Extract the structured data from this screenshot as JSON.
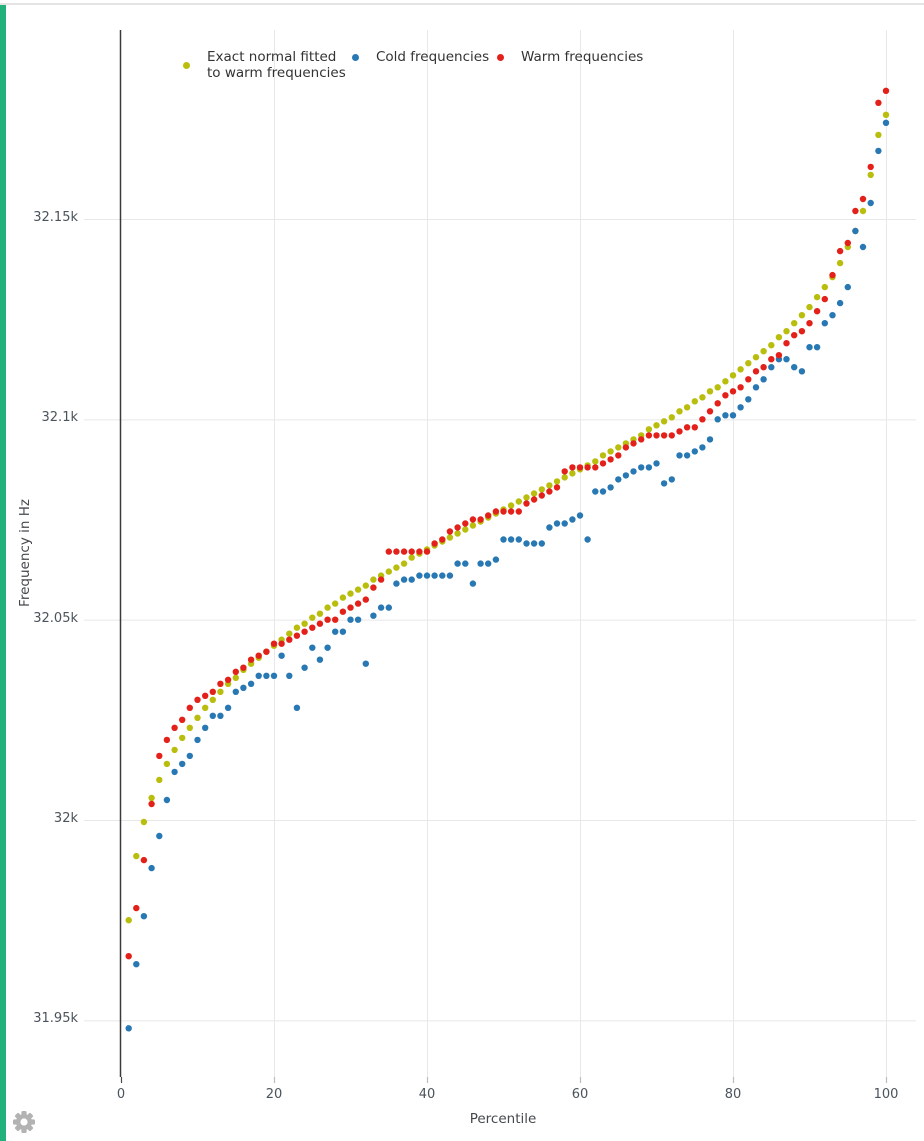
{
  "page": {
    "accent_strip_color": "#22b17c",
    "top_border_color": "#e4e4e4",
    "gear_color": "#b3b3b3",
    "background_color": "#ffffff"
  },
  "legend": {
    "items": [
      {
        "id": "fit",
        "label_lines": [
          "Exact normal fitted",
          "to warm frequencies"
        ],
        "color": "#b9bd0c"
      },
      {
        "id": "cold",
        "label_lines": [
          "Cold frequencies"
        ],
        "color": "#2878b4"
      },
      {
        "id": "warm",
        "label_lines": [
          "Warm frequencies"
        ],
        "color": "#e3211a"
      }
    ]
  },
  "chart_data": {
    "type": "scatter",
    "title": "",
    "xlabel": "Percentile",
    "ylabel": "Frequency in Hz",
    "legend_position": "top",
    "grid": true,
    "x_ticks": [
      "0",
      "20",
      "40",
      "60",
      "80",
      "100"
    ],
    "x_tick_values": [
      0,
      20,
      40,
      60,
      80,
      100
    ],
    "y_ticks": [
      "31.95k",
      "32k",
      "32.05k",
      "32.1k",
      "32.15k"
    ],
    "y_tick_values": [
      31950,
      32000,
      32050,
      32100,
      32150
    ],
    "x_range": [
      -1.5,
      104
    ],
    "y_range": [
      31936,
      32197
    ],
    "grid_color": "#e8e8e8",
    "axis_line_color": "#3a3a3c",
    "x": [
      1,
      2,
      3,
      4,
      5,
      6,
      7,
      8,
      9,
      10,
      11,
      12,
      13,
      14,
      15,
      16,
      17,
      18,
      19,
      20,
      21,
      22,
      23,
      24,
      25,
      26,
      27,
      28,
      29,
      30,
      31,
      32,
      33,
      34,
      35,
      36,
      37,
      38,
      39,
      40,
      41,
      42,
      43,
      44,
      45,
      46,
      47,
      48,
      49,
      50,
      51,
      52,
      53,
      54,
      55,
      56,
      57,
      58,
      59,
      60,
      61,
      62,
      63,
      64,
      65,
      66,
      67,
      68,
      69,
      70,
      71,
      72,
      73,
      74,
      75,
      76,
      77,
      78,
      79,
      80,
      81,
      82,
      83,
      84,
      85,
      86,
      87,
      88,
      89,
      90,
      91,
      92,
      93,
      94,
      95,
      96,
      97,
      98,
      99,
      100
    ],
    "series": [
      {
        "name": "Exact normal fitted to warm frequencies",
        "color": "#b9bd0c",
        "values": [
          31975,
          31991,
          31999.5,
          32005.5,
          32010,
          32014,
          32017.5,
          32020.5,
          32023,
          32025.5,
          32028,
          32030,
          32032,
          32034,
          32035.5,
          32037.5,
          32039,
          32040.5,
          32042,
          32043.5,
          32045,
          32046.5,
          32048,
          32049,
          32050.5,
          32051.5,
          32053,
          32054,
          32055.5,
          32056.5,
          32057.5,
          32058.5,
          32060,
          32061,
          32062,
          32063,
          32064,
          32065.5,
          32066.5,
          32067.5,
          32068.5,
          32069.5,
          32070.5,
          32071.5,
          32072.5,
          32073.5,
          32074.5,
          32075.5,
          32076.5,
          32077.5,
          32078.5,
          32079.5,
          32080.5,
          32081.5,
          32082.5,
          32083.5,
          32084.5,
          32085.5,
          32086.5,
          32087.5,
          32088.5,
          32089.5,
          32091,
          32092,
          32093,
          32094,
          32095,
          32096,
          32097.5,
          32098.5,
          32099.5,
          32100.5,
          32102,
          32103,
          32104.5,
          32105.5,
          32107,
          32108,
          32109.5,
          32111,
          32112.5,
          32114,
          32115.5,
          32117,
          32118.5,
          32120.5,
          32122,
          32124,
          32126,
          32128,
          32130.5,
          32133,
          32135.5,
          32139,
          32143,
          32147,
          32152,
          32161,
          32171,
          32176
        ]
      },
      {
        "name": "Cold frequencies",
        "color": "#2878b4",
        "values": [
          31948,
          31964,
          31976,
          31988,
          31996,
          32005,
          32012,
          32014,
          32016,
          32020,
          32023,
          32026,
          32026,
          32028,
          32032,
          32033,
          32034,
          32036,
          32036,
          32036,
          32041,
          32036,
          32028,
          32038,
          32043,
          32040,
          32043,
          32047,
          32047,
          32050,
          32050,
          32039,
          32051,
          32053,
          32053,
          32059,
          32060,
          32060,
          32061,
          32061,
          32061,
          32061,
          32061,
          32064,
          32064,
          32059,
          32064,
          32064,
          32065,
          32070,
          32070,
          32070,
          32069,
          32069,
          32069,
          32073,
          32074,
          32074,
          32075,
          32076,
          32070,
          32082,
          32082,
          32083,
          32085,
          32086,
          32087,
          32088,
          32088,
          32089,
          32084,
          32085,
          32091,
          32091,
          32092,
          32093,
          32095,
          32100,
          32101,
          32101,
          32103,
          32105,
          32108,
          32110,
          32113,
          32115,
          32115,
          32113,
          32112,
          32118,
          32118,
          32124,
          32126,
          32129,
          32133,
          32147,
          32143,
          32154,
          32167,
          32174
        ]
      },
      {
        "name": "Warm frequencies",
        "color": "#e3211a",
        "values": [
          31966,
          31978,
          31990,
          32004,
          32016,
          32020,
          32023,
          32025,
          32028,
          32030,
          32031,
          32032,
          32034,
          32035,
          32037,
          32038,
          32040,
          32041,
          32042,
          32044,
          32044,
          32045,
          32046,
          32047,
          32048,
          32049,
          32050,
          32050,
          32052,
          32053,
          32054,
          32055,
          32058,
          32060,
          32067,
          32067,
          32067,
          32067,
          32067,
          32067,
          32069,
          32070,
          32072,
          32073,
          32074,
          32075,
          32075,
          32076,
          32077,
          32077,
          32077,
          32077,
          32079,
          32080,
          32081,
          32082,
          32083,
          32087,
          32088,
          32088,
          32088,
          32088,
          32089,
          32090,
          32091,
          32093,
          32094,
          32095,
          32096,
          32096,
          32096,
          32096,
          32097,
          32098,
          32098,
          32100,
          32102,
          32104,
          32106,
          32107,
          32108,
          32110,
          32112,
          32113,
          32115,
          32116,
          32119,
          32121,
          32122,
          32124,
          32127,
          32130,
          32136,
          32142,
          32144,
          32152,
          32155,
          32163,
          32179,
          32182
        ]
      }
    ]
  }
}
